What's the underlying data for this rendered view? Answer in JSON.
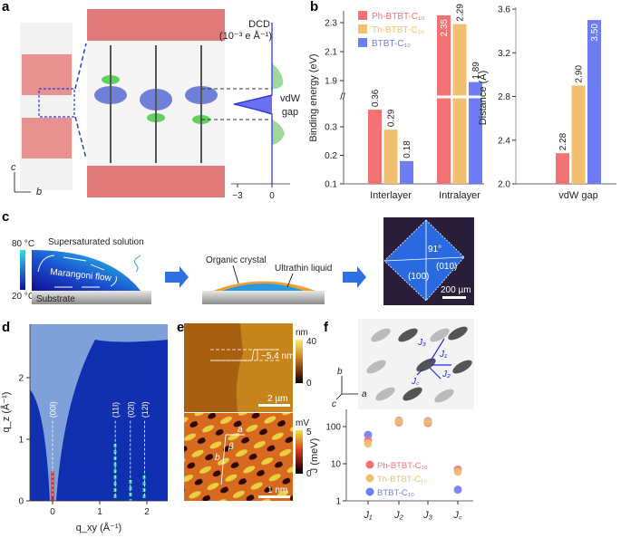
{
  "panels": {
    "a": {
      "label": "a",
      "axis_c": "c",
      "axis_b": "b",
      "dcd_title": "DCD",
      "dcd_unit": "(10⁻³ e Å⁻¹)",
      "dcd_ticks": [
        "−3",
        "0"
      ],
      "gap_label_1": "vdW",
      "gap_label_2": "gap"
    },
    "b": {
      "label": "b"
    },
    "c": {
      "label": "c",
      "temp_high": "80 °C",
      "temp_low": "20 °C",
      "solution": "Supersaturated solution",
      "flow": "Marangoni flow",
      "substrate": "Substrate",
      "crystal": "Organic crystal",
      "liquid": "Ultrathin liquid",
      "angle": "91°",
      "face_010": "(010)",
      "face_100": "(100)",
      "scale": "200 µm"
    },
    "d": {
      "label": "d",
      "xlabel": "q_xy (Å⁻¹)",
      "ylabel": "q_z (Å⁻¹)",
      "xticks": [
        "0",
        "1",
        "2"
      ],
      "yticks": [
        "0",
        "1",
        "2"
      ],
      "peaks": [
        "(00l)",
        "(11l)",
        "(02l)",
        "(12l)"
      ]
    },
    "e": {
      "label": "e",
      "top_unit": "nm",
      "top_max": "40",
      "top_min": "0",
      "step": "~5.4 nm",
      "top_scale": "2 µm",
      "bot_unit": "mV",
      "bot_max": "5",
      "bot_min": "0",
      "lat_a": "a",
      "lat_b": "b",
      "lat_beta": "β",
      "bot_scale": "1 nm"
    },
    "f": {
      "label": "f",
      "axis_a": "a",
      "axis_b": "b",
      "axis_c": "c",
      "J1": "J₁",
      "J2": "J₂",
      "J3": "J₃",
      "Jc": "J꜀"
    }
  },
  "colors": {
    "ph": "#f47174",
    "th": "#f0c070",
    "btbt": "#6f7df5"
  },
  "chart_data": [
    {
      "panel": "b-left",
      "type": "bar",
      "ylabel": "Binding energy (eV)",
      "categories": [
        "Interlayer",
        "Intralayer"
      ],
      "series": [
        {
          "name": "Ph-BTBT-C₁₀",
          "values": [
            0.36,
            2.35
          ]
        },
        {
          "name": "Th-BTBT-C₁₀",
          "values": [
            0.29,
            2.29
          ]
        },
        {
          "name": "BTBT-C₁₀",
          "values": [
            0.18,
            1.89
          ]
        }
      ],
      "value_labels": [
        [
          "0.36",
          "2.35"
        ],
        [
          "0.29",
          "2.29"
        ],
        [
          "0.18",
          "1.89"
        ]
      ],
      "yticks": [
        "0.1",
        "0.2",
        "0.3",
        "1.9",
        "2.1",
        "2.3"
      ],
      "ylim": [
        0.1,
        2.4
      ],
      "axis_break": [
        0.4,
        1.8
      ],
      "legend": "top-left"
    },
    {
      "panel": "b-right",
      "type": "bar",
      "ylabel": "Distance (Å)",
      "categories": [
        "vdW  gap"
      ],
      "series": [
        {
          "name": "Ph-BTBT-C₁₀",
          "values": [
            2.28
          ]
        },
        {
          "name": "Th-BTBT-C₁₀",
          "values": [
            2.9
          ]
        },
        {
          "name": "BTBT-C₁₀",
          "values": [
            3.5
          ]
        }
      ],
      "value_labels": [
        "2.28",
        "2.90",
        "3.50"
      ],
      "yticks": [
        "2.0",
        "2.4",
        "2.8",
        "3.2",
        "3.6"
      ],
      "ylim": [
        2.0,
        3.6
      ]
    },
    {
      "panel": "f",
      "type": "scatter",
      "ylabel": "J (meV)",
      "yscale": "log",
      "ylim": [
        1,
        300
      ],
      "yticks": [
        "1",
        "10",
        "100"
      ],
      "categories": [
        "J₁",
        "J₂",
        "J₃",
        "J꜀"
      ],
      "series": [
        {
          "name": "Ph-BTBT-C₁₀",
          "values": [
            42,
            130,
            125,
            7
          ]
        },
        {
          "name": "Th-BTBT-C₁₀",
          "values": [
            35,
            140,
            135,
            6
          ]
        },
        {
          "name": "BTBT-C₁₀",
          "values": [
            60,
            145,
            140,
            2
          ]
        }
      ],
      "legend": "bottom-left"
    }
  ]
}
